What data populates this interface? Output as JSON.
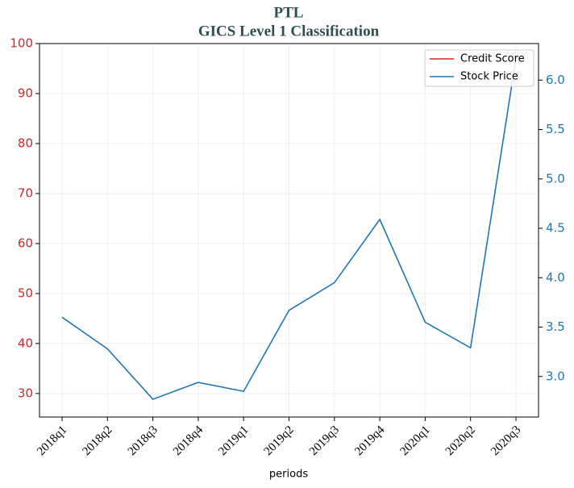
{
  "chart_data": {
    "type": "line",
    "title": "PTL",
    "subtitle": "GICS Level 1 Classification",
    "x_label": "periods",
    "categories": [
      "2018q1",
      "2018q2",
      "2018q3",
      "2018q4",
      "2019q1",
      "2019q2",
      "2019q3",
      "2019q4",
      "2020q1",
      "2020q2",
      "2020q3"
    ],
    "series": [
      {
        "name": "Credit Score",
        "color": "#d62728",
        "values": [
          null,
          null,
          null,
          null,
          null,
          null,
          null,
          null,
          null,
          null,
          null
        ]
      },
      {
        "name": "Stock Price",
        "color": "#1f77b4",
        "axis": "y2",
        "values": [
          3.6,
          3.28,
          2.77,
          2.94,
          2.85,
          3.67,
          3.95,
          4.59,
          3.55,
          3.29,
          6.22
        ]
      }
    ],
    "ylim": [
      25.3,
      100
    ],
    "yticks": [
      30,
      40,
      50,
      60,
      70,
      80,
      90,
      100
    ],
    "y_color": "#d62728",
    "y2lim": [
      2.59,
      6.37
    ],
    "y2ticks": [
      {
        "value": 3,
        "label": "3.0"
      },
      {
        "value": 3.5,
        "label": "3.5"
      },
      {
        "value": 4,
        "label": "4.0"
      },
      {
        "value": 4.5,
        "label": "4.5"
      },
      {
        "value": 5,
        "label": "5.0"
      },
      {
        "value": 5.5,
        "label": "5.5"
      },
      {
        "value": 6,
        "label": "6.0"
      }
    ],
    "y2_color": "#1f77b4",
    "grid": true,
    "legend": "upper right"
  }
}
